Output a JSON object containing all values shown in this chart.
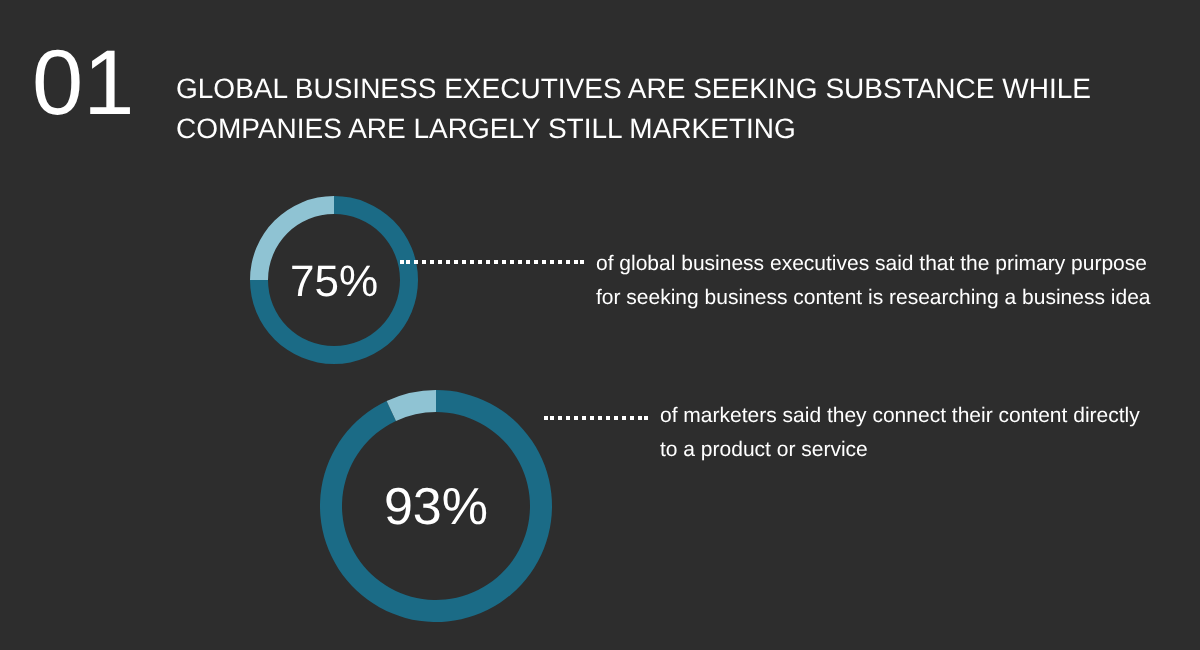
{
  "chart_data": [
    {
      "type": "donut",
      "title": "01",
      "subtitle": "GLOBAL BUSINESS EXECUTIVES ARE SEEKING SUBSTANCE WHILE COMPANIES ARE LARGELY STILL MARKETING",
      "categories": [
        null,
        null
      ],
      "values": [
        75,
        25
      ],
      "colors": [
        "#1b6b86",
        "#8fc3d3"
      ],
      "value_labels": [
        "75%",
        null
      ],
      "annotations": [
        "of global business executives said that the primary purpose for seeking business content is researching a business idea"
      ]
    },
    {
      "type": "donut",
      "categories": [
        null,
        null
      ],
      "values": [
        93,
        7
      ],
      "colors": [
        "#1b6b86",
        "#8fc3d3"
      ],
      "value_labels": [
        "93%",
        null
      ],
      "annotations": [
        "of marketers said they connect their content directly to a product or service"
      ]
    }
  ]
}
